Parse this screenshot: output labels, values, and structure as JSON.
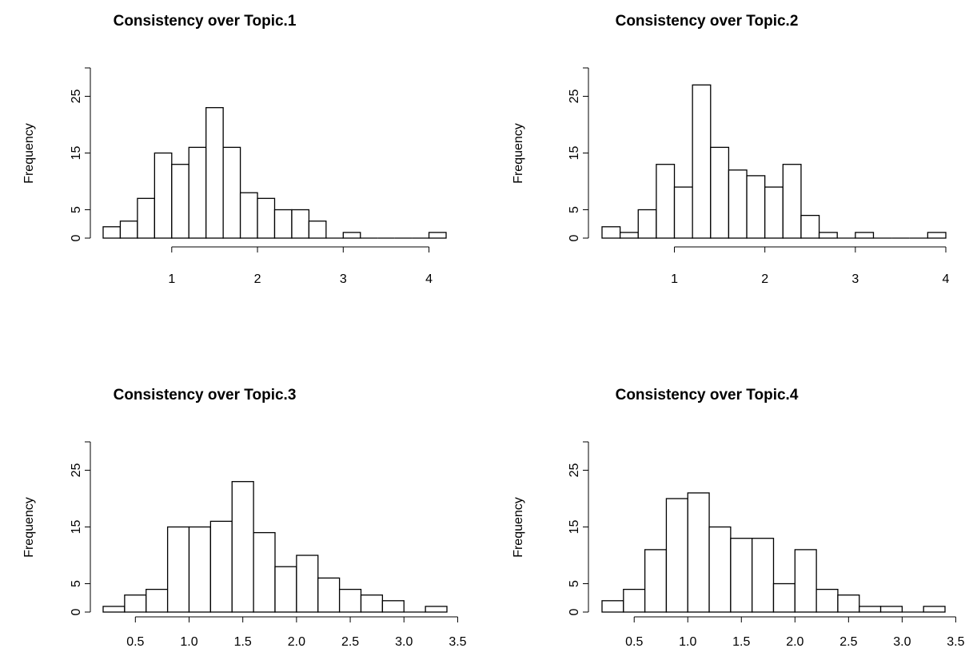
{
  "chart_data": [
    {
      "type": "histogram",
      "title": "Consistency over Topic.1",
      "xlabel": "",
      "ylabel": "Frequency",
      "bin_width": 0.2,
      "bin_start": 0.2,
      "counts": [
        2,
        3,
        7,
        15,
        13,
        16,
        23,
        16,
        8,
        7,
        5,
        5,
        3,
        0,
        1,
        0,
        0,
        0,
        0,
        1
      ],
      "xticks": [
        "1",
        "2",
        "3",
        "4"
      ],
      "xtick_values": [
        1,
        2,
        3,
        4
      ],
      "xlim": [
        0.2,
        4.2
      ],
      "yticks": [
        "0",
        "5",
        "15",
        "25"
      ],
      "ytick_values": [
        0,
        5,
        15,
        25
      ],
      "ylim": [
        0,
        30
      ]
    },
    {
      "type": "histogram",
      "title": "Consistency over Topic.2",
      "xlabel": "",
      "ylabel": "Frequency",
      "bin_width": 0.2,
      "bin_start": 0.2,
      "counts": [
        2,
        1,
        5,
        13,
        9,
        27,
        16,
        12,
        11,
        9,
        13,
        4,
        1,
        0,
        1,
        0,
        0,
        0,
        1
      ],
      "xticks": [
        "1",
        "2",
        "3",
        "4"
      ],
      "xtick_values": [
        1,
        2,
        3,
        4
      ],
      "xlim": [
        0.2,
        4.0
      ],
      "yticks": [
        "0",
        "5",
        "15",
        "25"
      ],
      "ytick_values": [
        0,
        5,
        15,
        25
      ],
      "ylim": [
        0,
        30
      ]
    },
    {
      "type": "histogram",
      "title": "Consistency over Topic.3",
      "xlabel": "",
      "ylabel": "Frequency",
      "bin_width": 0.2,
      "bin_start": 0.2,
      "counts": [
        1,
        3,
        4,
        15,
        15,
        16,
        23,
        14,
        8,
        10,
        6,
        4,
        3,
        2,
        0,
        1
      ],
      "xticks": [
        "0.5",
        "1.0",
        "1.5",
        "2.0",
        "2.5",
        "3.0",
        "3.5"
      ],
      "xtick_values": [
        0.5,
        1.0,
        1.5,
        2.0,
        2.5,
        3.0,
        3.5
      ],
      "xlim": [
        0.2,
        3.4
      ],
      "yticks": [
        "0",
        "5",
        "15",
        "25"
      ],
      "ytick_values": [
        0,
        5,
        15,
        25
      ],
      "ylim": [
        0,
        30
      ]
    },
    {
      "type": "histogram",
      "title": "Consistency over Topic.4",
      "xlabel": "",
      "ylabel": "Frequency",
      "bin_width": 0.2,
      "bin_start": 0.2,
      "counts": [
        2,
        4,
        11,
        20,
        21,
        15,
        13,
        13,
        5,
        11,
        4,
        3,
        1,
        1,
        0,
        1
      ],
      "xticks": [
        "0.5",
        "1.0",
        "1.5",
        "2.0",
        "2.5",
        "3.0",
        "3.5"
      ],
      "xtick_values": [
        0.5,
        1.0,
        1.5,
        2.0,
        2.5,
        3.0,
        3.5
      ],
      "xlim": [
        0.2,
        3.4
      ],
      "yticks": [
        "0",
        "5",
        "15",
        "25"
      ],
      "ytick_values": [
        0,
        5,
        15,
        25
      ],
      "ylim": [
        0,
        30
      ]
    }
  ],
  "colors": {
    "bar_fill": "#ffffff",
    "bar_stroke": "#000000",
    "axis": "#000000",
    "background": "#ffffff"
  }
}
